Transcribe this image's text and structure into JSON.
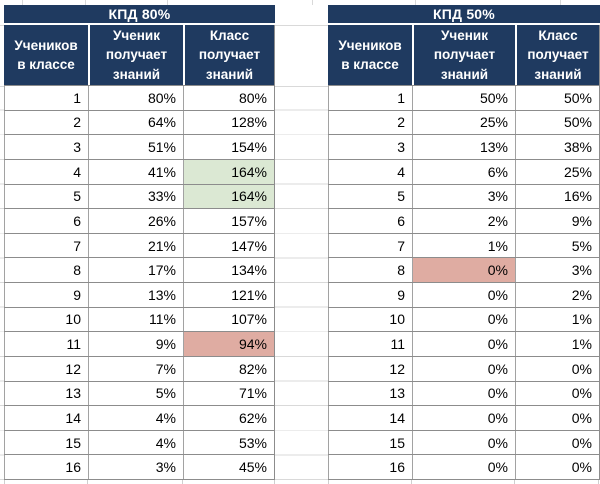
{
  "colors": {
    "header_bg": "#1f3a60",
    "header_text": "#ffffff",
    "highlight_green": "#dbe8d3",
    "highlight_red": "#dfaca2",
    "gridline": "#d9d9d9",
    "row_border": "#8c8c8c",
    "col_border": "#a2a2a2",
    "text": "#000000"
  },
  "tables": [
    {
      "title": "КПД 80%",
      "headers": [
        "Учеников\nв классе",
        "Ученик\nполучает\nзнаний",
        "Класс\nполучает\nзнаний"
      ],
      "rows": [
        [
          {
            "t": "1"
          },
          {
            "t": "80%"
          },
          {
            "t": "80%"
          }
        ],
        [
          {
            "t": "2"
          },
          {
            "t": "64%"
          },
          {
            "t": "128%"
          }
        ],
        [
          {
            "t": "3"
          },
          {
            "t": "51%"
          },
          {
            "t": "154%"
          }
        ],
        [
          {
            "t": "4"
          },
          {
            "t": "41%"
          },
          {
            "t": "164%",
            "bg": "green"
          }
        ],
        [
          {
            "t": "5"
          },
          {
            "t": "33%"
          },
          {
            "t": "164%",
            "bg": "green"
          }
        ],
        [
          {
            "t": "6"
          },
          {
            "t": "26%"
          },
          {
            "t": "157%"
          }
        ],
        [
          {
            "t": "7"
          },
          {
            "t": "21%"
          },
          {
            "t": "147%"
          }
        ],
        [
          {
            "t": "8"
          },
          {
            "t": "17%"
          },
          {
            "t": "134%"
          }
        ],
        [
          {
            "t": "9"
          },
          {
            "t": "13%"
          },
          {
            "t": "121%"
          }
        ],
        [
          {
            "t": "10"
          },
          {
            "t": "11%"
          },
          {
            "t": "107%"
          }
        ],
        [
          {
            "t": "11"
          },
          {
            "t": "9%"
          },
          {
            "t": "94%",
            "bg": "red"
          }
        ],
        [
          {
            "t": "12"
          },
          {
            "t": "7%"
          },
          {
            "t": "82%"
          }
        ],
        [
          {
            "t": "13"
          },
          {
            "t": "5%"
          },
          {
            "t": "71%"
          }
        ],
        [
          {
            "t": "14"
          },
          {
            "t": "4%"
          },
          {
            "t": "62%"
          }
        ],
        [
          {
            "t": "15"
          },
          {
            "t": "4%"
          },
          {
            "t": "53%"
          }
        ],
        [
          {
            "t": "16"
          },
          {
            "t": "3%"
          },
          {
            "t": "45%"
          }
        ]
      ]
    },
    {
      "title": "КПД 50%",
      "headers": [
        "Учеников\nв классе",
        "Ученик\nполучает\nзнаний",
        "Класс\nполучает\nзнаний"
      ],
      "rows": [
        [
          {
            "t": "1"
          },
          {
            "t": "50%"
          },
          {
            "t": "50%"
          }
        ],
        [
          {
            "t": "2"
          },
          {
            "t": "25%"
          },
          {
            "t": "50%"
          }
        ],
        [
          {
            "t": "3"
          },
          {
            "t": "13%"
          },
          {
            "t": "38%"
          }
        ],
        [
          {
            "t": "4"
          },
          {
            "t": "6%"
          },
          {
            "t": "25%"
          }
        ],
        [
          {
            "t": "5"
          },
          {
            "t": "3%"
          },
          {
            "t": "16%"
          }
        ],
        [
          {
            "t": "6"
          },
          {
            "t": "2%"
          },
          {
            "t": "9%"
          }
        ],
        [
          {
            "t": "7"
          },
          {
            "t": "1%"
          },
          {
            "t": "5%"
          }
        ],
        [
          {
            "t": "8"
          },
          {
            "t": "0%",
            "bg": "red"
          },
          {
            "t": "3%"
          }
        ],
        [
          {
            "t": "9"
          },
          {
            "t": "0%"
          },
          {
            "t": "2%"
          }
        ],
        [
          {
            "t": "10"
          },
          {
            "t": "0%"
          },
          {
            "t": "1%"
          }
        ],
        [
          {
            "t": "11"
          },
          {
            "t": "0%"
          },
          {
            "t": "1%"
          }
        ],
        [
          {
            "t": "12"
          },
          {
            "t": "0%"
          },
          {
            "t": "0%"
          }
        ],
        [
          {
            "t": "13"
          },
          {
            "t": "0%"
          },
          {
            "t": "0%"
          }
        ],
        [
          {
            "t": "14"
          },
          {
            "t": "0%"
          },
          {
            "t": "0%"
          }
        ],
        [
          {
            "t": "15"
          },
          {
            "t": "0%"
          },
          {
            "t": "0%"
          }
        ],
        [
          {
            "t": "16"
          },
          {
            "t": "0%"
          },
          {
            "t": "0%"
          }
        ]
      ]
    }
  ]
}
